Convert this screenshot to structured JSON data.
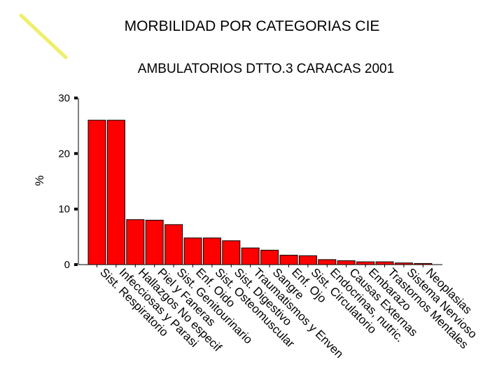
{
  "slide": {
    "title": "MORBILIDAD POR CATEGORIAS CIE",
    "subtitle": "AMBULATORIOS DTTO.3 CARACAS 2001"
  },
  "colors": {
    "bar_fill": "#ff0000",
    "bar_stroke": "#000000",
    "highlighter_line": "#f0ee6a"
  },
  "chart_data": {
    "type": "bar",
    "title": "MORBILIDAD POR CATEGORIAS CIE",
    "subtitle": "AMBULATORIOS DTTO.3 CARACAS 2001",
    "ylabel": "%",
    "xlabel": "",
    "ylim": [
      0,
      30
    ],
    "yticks": [
      0,
      10,
      20,
      30
    ],
    "grid": false,
    "categories": [
      "Sist. Respiratorio",
      "Infecciosas y Parasi",
      "Hallazgos No especif",
      "Piel y Faneras",
      "Sist. Genitourinario",
      "Enf. Oido",
      "Sist. Osteomuscular",
      "Sist. Digestivo",
      "Traumatismos y Enven",
      "Sangre",
      "Enf. Ojo",
      "Sist. Circulatorio",
      "Endocrinas, nutric.",
      "Causas Externas",
      "Embarazo",
      "Trastornos Mentales",
      "Sistema Nervioso",
      "Neoplasias"
    ],
    "values": [
      26,
      26,
      8.1,
      8.0,
      7.2,
      4.8,
      4.8,
      4.3,
      3.0,
      2.6,
      1.7,
      1.6,
      0.9,
      0.7,
      0.5,
      0.5,
      0.3,
      0.2
    ]
  }
}
